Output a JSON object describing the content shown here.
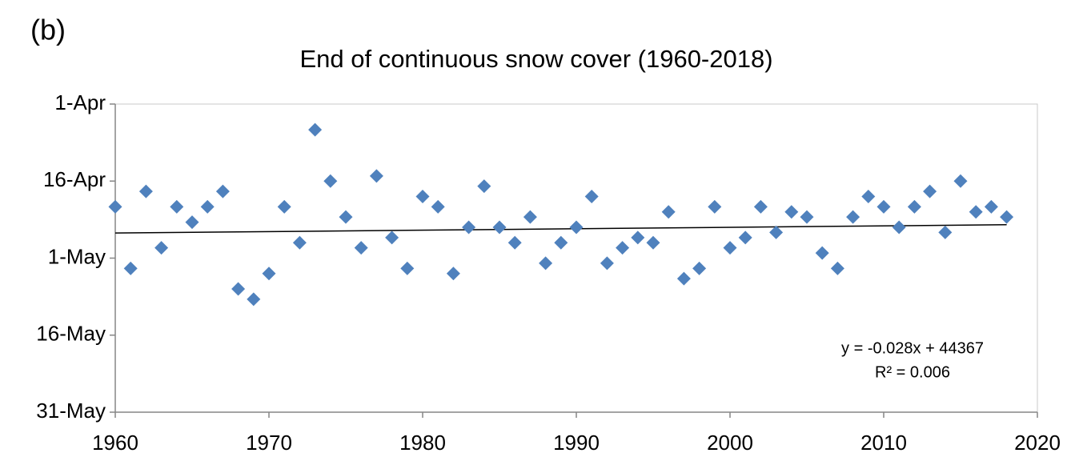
{
  "panel_label": "(b)",
  "chart_data": {
    "type": "scatter",
    "title": "End of continuous snow cover (1960-2018)",
    "x": [
      1960,
      1961,
      1962,
      1963,
      1964,
      1965,
      1966,
      1967,
      1968,
      1969,
      1970,
      1971,
      1972,
      1973,
      1974,
      1975,
      1976,
      1977,
      1978,
      1979,
      1980,
      1981,
      1982,
      1983,
      1984,
      1985,
      1986,
      1987,
      1988,
      1989,
      1990,
      1991,
      1992,
      1993,
      1994,
      1995,
      1996,
      1997,
      1998,
      1999,
      2000,
      2001,
      2002,
      2003,
      2004,
      2005,
      2006,
      2007,
      2008,
      2009,
      2010,
      2011,
      2012,
      2013,
      2014,
      2015,
      2016,
      2017,
      2018
    ],
    "values": [
      44307,
      44319,
      44304,
      44315,
      44307,
      44310,
      44307,
      44304,
      44323,
      44325,
      44320,
      44307,
      44314,
      44292,
      44302,
      44309,
      44315,
      44301,
      44313,
      44319,
      44305,
      44307,
      44320,
      44311,
      44303,
      44311,
      44314,
      44309,
      44318,
      44314,
      44311,
      44305,
      44318,
      44315,
      44313,
      44314,
      44308,
      44321,
      44319,
      44307,
      44315,
      44313,
      44307,
      44312,
      44308,
      44309,
      44316,
      44319,
      44309,
      44305,
      44307,
      44311,
      44307,
      44304,
      44312,
      44302,
      44308,
      44307,
      44309
    ],
    "color": "#4f81bd",
    "xlim": [
      1960,
      2020
    ],
    "xticks": [
      1960,
      1970,
      1980,
      1990,
      2000,
      2010,
      2020
    ],
    "ylim": [
      44287,
      44347
    ],
    "y_reversed": true,
    "yticks": [
      {
        "value": 44287,
        "label": "1-Apr"
      },
      {
        "value": 44302,
        "label": "16-Apr"
      },
      {
        "value": 44317,
        "label": "1-May"
      },
      {
        "value": 44332,
        "label": "16-May"
      },
      {
        "value": 44347,
        "label": "31-May"
      }
    ],
    "trendline": {
      "slope": -0.028,
      "intercept": 44367,
      "equation": "y = -0.028x + 44367",
      "r2": 0.006,
      "r2_label": "R² = 0.006"
    }
  }
}
